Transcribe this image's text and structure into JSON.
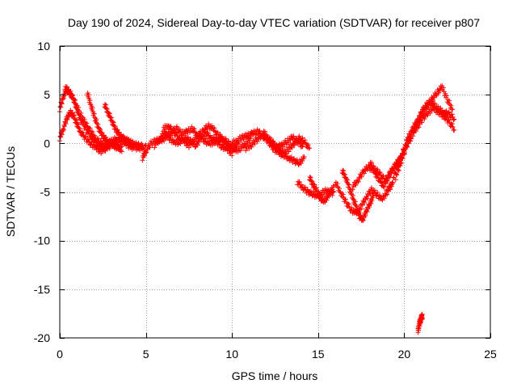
{
  "chart_data": {
    "type": "scatter",
    "title": "Day 190 of 2024, Sidereal Day-to-day VTEC variation (SDTVAR) for receiver p807",
    "xlabel": "GPS time / hours",
    "ylabel": "SDTVAR / TECUs",
    "xlim": [
      0,
      25
    ],
    "ylim": [
      -20,
      10
    ],
    "xticks": [
      0,
      5,
      10,
      15,
      20,
      25
    ],
    "yticks": [
      -20,
      -15,
      -10,
      -5,
      0,
      5,
      10
    ],
    "xtick_labels": [
      "0",
      "5",
      "10",
      "15",
      "20",
      "25"
    ],
    "ytick_labels": [
      "-20",
      "-15",
      "-10",
      "-5",
      "0",
      "5",
      "10"
    ],
    "grid": true,
    "marker": "+",
    "color": "#ff0000",
    "series": [
      {
        "name": "track-early-1",
        "x": [
          0.0,
          0.2,
          0.4,
          0.6,
          0.8,
          1.0,
          1.2,
          1.5,
          1.8,
          2.0,
          2.3,
          2.6,
          3.0,
          3.4,
          3.8,
          4.2,
          4.6,
          5.0
        ],
        "y": [
          3.5,
          4.8,
          5.5,
          5.2,
          4.5,
          3.5,
          2.5,
          1.5,
          0.8,
          0.3,
          -0.3,
          -0.6,
          -0.2,
          0.2,
          -0.1,
          -0.4,
          -0.5,
          -0.4
        ]
      },
      {
        "name": "track-early-2",
        "x": [
          0.0,
          0.2,
          0.4,
          0.6,
          0.8,
          1.0,
          1.2,
          1.5,
          1.8,
          2.1,
          2.4,
          2.7,
          3.0,
          3.3
        ],
        "y": [
          0.5,
          1.5,
          2.5,
          3.2,
          2.8,
          2.0,
          1.2,
          0.5,
          0.0,
          -0.5,
          -0.8,
          -0.4,
          0.2,
          0.5
        ]
      },
      {
        "name": "track-early-3",
        "x": [
          0.3,
          0.6,
          0.9,
          1.2,
          1.5,
          1.8,
          2.1,
          2.4,
          2.7,
          3.0,
          3.3,
          3.6,
          3.9,
          4.2
        ],
        "y": [
          5.8,
          5.2,
          4.2,
          3.0,
          2.0,
          1.2,
          0.5,
          0.0,
          -0.3,
          -0.2,
          0.3,
          0.6,
          0.2,
          -0.2
        ]
      },
      {
        "name": "track-early-4",
        "x": [
          1.6,
          1.8,
          2.0,
          2.2,
          2.4,
          2.6,
          2.8,
          3.0,
          3.2,
          3.4,
          3.6
        ],
        "y": [
          5.2,
          4.0,
          2.8,
          1.8,
          1.0,
          0.5,
          0.2,
          0.0,
          -0.3,
          -0.5,
          -0.6
        ]
      },
      {
        "name": "track-early-5",
        "x": [
          2.6,
          2.8,
          3.0,
          3.2,
          3.4,
          3.6,
          3.8,
          4.0,
          4.2,
          4.5,
          4.8
        ],
        "y": [
          4.0,
          3.2,
          2.4,
          1.6,
          1.0,
          0.6,
          0.4,
          0.2,
          0.0,
          -0.2,
          -0.3
        ]
      },
      {
        "name": "track-mid-1",
        "x": [
          4.8,
          5.0,
          5.3,
          5.6,
          5.9,
          6.2,
          6.5,
          6.8,
          7.1,
          7.4,
          7.7,
          8.0,
          8.3,
          8.6,
          8.9,
          9.2,
          9.5,
          9.8,
          10.1,
          10.4
        ],
        "y": [
          -1.5,
          -0.8,
          0.0,
          0.3,
          0.2,
          0.8,
          1.2,
          1.5,
          1.0,
          1.2,
          1.5,
          0.8,
          1.2,
          1.8,
          1.5,
          0.8,
          0.5,
          0.0,
          -0.5,
          0.0
        ]
      },
      {
        "name": "track-mid-2",
        "x": [
          5.5,
          5.8,
          6.1,
          6.4,
          6.7,
          7.0,
          7.3,
          7.6,
          7.9,
          8.2,
          8.5,
          8.8,
          9.1,
          9.4,
          9.7,
          10.0
        ],
        "y": [
          -0.2,
          0.5,
          1.0,
          0.5,
          0.0,
          0.2,
          0.6,
          0.2,
          -0.2,
          0.5,
          1.0,
          0.6,
          0.2,
          -0.3,
          -0.6,
          -1.0
        ]
      },
      {
        "name": "track-mid-3",
        "x": [
          6.0,
          6.3,
          6.6,
          6.9,
          7.2,
          7.5,
          7.8,
          8.1,
          8.4,
          8.7,
          9.0,
          9.3,
          9.6,
          9.9,
          10.2,
          10.5,
          10.8,
          11.1
        ],
        "y": [
          1.5,
          1.8,
          1.2,
          0.6,
          0.2,
          -0.2,
          0.4,
          0.8,
          0.3,
          -0.1,
          0.2,
          0.6,
          0.0,
          -0.4,
          -0.8,
          -0.5,
          0.0,
          0.4
        ]
      },
      {
        "name": "track-mid-4",
        "x": [
          10.0,
          10.3,
          10.6,
          10.9,
          11.2,
          11.5,
          11.8,
          12.1,
          12.4,
          12.7,
          13.0,
          13.3,
          13.6,
          13.9,
          14.2
        ],
        "y": [
          0.0,
          0.3,
          0.6,
          0.8,
          1.0,
          1.2,
          0.8,
          0.2,
          -0.5,
          -1.0,
          -1.2,
          -1.5,
          -1.8,
          -2.0,
          -1.5
        ]
      },
      {
        "name": "track-mid-5",
        "x": [
          10.8,
          11.1,
          11.4,
          11.7,
          12.0,
          12.3,
          12.6,
          12.9,
          13.2,
          13.5,
          13.8,
          14.1
        ],
        "y": [
          -0.5,
          -0.2,
          0.3,
          0.8,
          0.5,
          0.0,
          -0.4,
          -0.2,
          0.2,
          0.6,
          0.2,
          -0.3
        ]
      },
      {
        "name": "track-mid-6",
        "x": [
          11.8,
          12.1,
          12.4,
          12.7,
          13.0,
          13.3,
          13.6,
          13.9,
          14.2,
          14.5
        ],
        "y": [
          1.2,
          0.6,
          0.0,
          -0.6,
          -1.0,
          -0.6,
          0.0,
          0.5,
          0.2,
          -0.6
        ]
      },
      {
        "name": "track-dip-1",
        "x": [
          13.8,
          14.1,
          14.4,
          14.7,
          15.0,
          15.3,
          15.6,
          15.9
        ],
        "y": [
          -4.0,
          -4.5,
          -5.0,
          -5.2,
          -5.5,
          -5.0,
          -4.8,
          -5.2
        ]
      },
      {
        "name": "track-dip-2",
        "x": [
          14.5,
          14.7,
          14.9,
          15.1,
          15.3,
          15.5,
          15.7,
          15.9
        ],
        "y": [
          -3.5,
          -4.2,
          -4.8,
          -5.5,
          -6.0,
          -5.6,
          -5.0,
          -4.6
        ]
      },
      {
        "name": "track-dip-3",
        "x": [
          16.0,
          16.3,
          16.6,
          16.9,
          17.2,
          17.5,
          17.8,
          18.1,
          18.4,
          18.7,
          19.0,
          19.3
        ],
        "y": [
          -4.0,
          -5.0,
          -6.0,
          -6.8,
          -7.2,
          -6.5,
          -5.5,
          -4.8,
          -5.2,
          -5.8,
          -5.0,
          -4.2
        ]
      },
      {
        "name": "track-dip-4",
        "x": [
          16.4,
          16.6,
          16.8,
          17.0,
          17.2,
          17.4,
          17.6,
          17.8,
          18.0,
          18.2
        ],
        "y": [
          -2.8,
          -3.5,
          -4.5,
          -5.5,
          -6.5,
          -7.5,
          -7.8,
          -7.0,
          -6.2,
          -5.5
        ]
      },
      {
        "name": "track-dip-5",
        "x": [
          17.0,
          17.3,
          17.6,
          17.9,
          18.2,
          18.5,
          18.8,
          19.1,
          19.4,
          19.7,
          20.0
        ],
        "y": [
          -4.5,
          -3.8,
          -3.0,
          -2.4,
          -2.8,
          -3.6,
          -4.4,
          -3.5,
          -2.5,
          -1.8,
          -0.8
        ]
      },
      {
        "name": "track-dip-6",
        "x": [
          18.0,
          18.3,
          18.6,
          18.9,
          19.2,
          19.5,
          19.8,
          20.1,
          20.4
        ],
        "y": [
          -2.0,
          -2.6,
          -3.2,
          -3.8,
          -3.0,
          -2.2,
          -1.4,
          -0.4,
          0.6
        ]
      },
      {
        "name": "track-rise-1",
        "x": [
          19.0,
          19.3,
          19.6,
          19.9,
          20.2,
          20.5,
          20.8,
          21.1,
          21.4,
          21.7,
          22.0,
          22.3,
          22.6,
          22.9
        ],
        "y": [
          -5.0,
          -4.0,
          -2.5,
          -1.0,
          0.5,
          1.5,
          2.5,
          3.5,
          4.2,
          4.0,
          3.5,
          3.2,
          3.0,
          2.6
        ]
      },
      {
        "name": "track-rise-2",
        "x": [
          19.5,
          19.8,
          20.1,
          20.4,
          20.7,
          21.0,
          21.3,
          21.6,
          21.9,
          22.2,
          22.5,
          22.8
        ],
        "y": [
          -3.5,
          -2.0,
          -0.5,
          1.0,
          2.0,
          3.0,
          3.8,
          4.5,
          5.2,
          5.8,
          4.5,
          3.5
        ]
      },
      {
        "name": "track-rise-3",
        "x": [
          20.5,
          20.8,
          21.1,
          21.4,
          21.7,
          22.0,
          22.3,
          22.6,
          22.9
        ],
        "y": [
          1.0,
          1.8,
          2.6,
          3.2,
          3.6,
          3.2,
          2.8,
          2.2,
          1.5
        ]
      },
      {
        "name": "track-outlier",
        "x": [
          20.8,
          20.85,
          20.9,
          20.95,
          21.0,
          21.05
        ],
        "y": [
          -19.2,
          -18.8,
          -18.4,
          -18.2,
          -17.9,
          -17.8
        ]
      }
    ]
  }
}
